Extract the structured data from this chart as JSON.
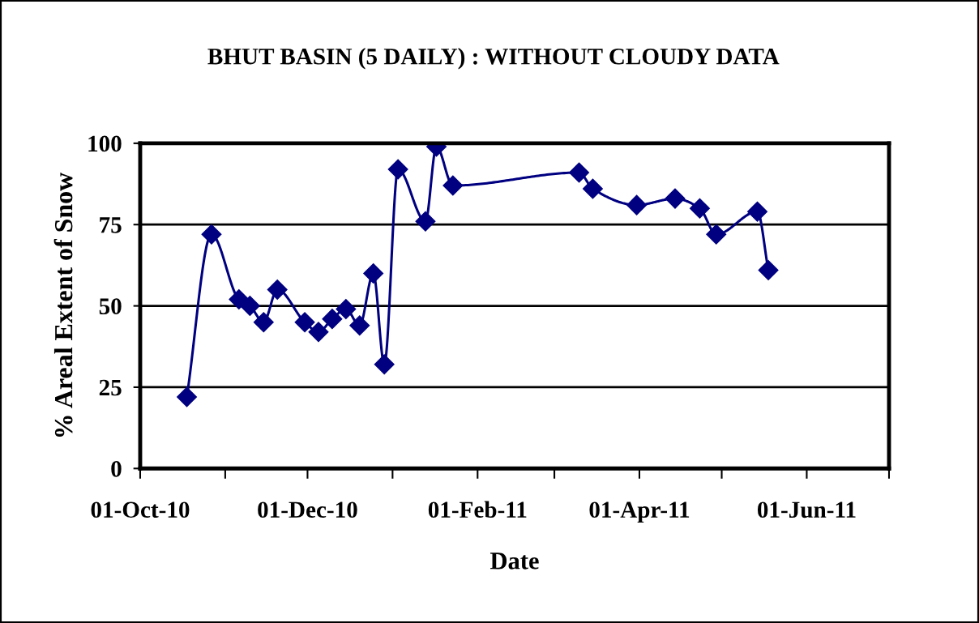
{
  "chart_data": {
    "type": "line",
    "title": "BHUT BASIN (5 DAILY) : WITHOUT CLOUDY DATA",
    "xlabel": "Date",
    "ylabel": "% Areal Extent of Snow",
    "x": [
      "2010-10-18",
      "2010-10-27",
      "2010-11-06",
      "2010-11-10",
      "2010-11-15",
      "2010-11-20",
      "2010-11-30",
      "2010-12-05",
      "2010-12-10",
      "2010-12-15",
      "2010-12-20",
      "2010-12-25",
      "2010-12-29",
      "2011-01-03",
      "2011-01-13",
      "2011-01-17",
      "2011-01-23",
      "2011-03-10",
      "2011-03-15",
      "2011-03-31",
      "2011-04-14",
      "2011-04-23",
      "2011-04-29",
      "2011-05-14",
      "2011-05-18"
    ],
    "series": [
      {
        "color": "#000080",
        "values": [
          22,
          72,
          52,
          50,
          45,
          55,
          45,
          42,
          46,
          49,
          44,
          60,
          32,
          92,
          76,
          99,
          87,
          91,
          86,
          81,
          83,
          80,
          72,
          79,
          61
        ]
      }
    ],
    "xlim": [
      "2010-10-01",
      "2011-07-01"
    ],
    "xticks": [
      {
        "value": "2010-10-01",
        "label": "01-Oct-10"
      },
      {
        "value": "2010-11-01",
        "label": null
      },
      {
        "value": "2010-12-01",
        "label": "01-Dec-10"
      },
      {
        "value": "2011-01-01",
        "label": null
      },
      {
        "value": "2011-02-01",
        "label": "01-Feb-11"
      },
      {
        "value": "2011-03-01",
        "label": null
      },
      {
        "value": "2011-04-01",
        "label": "01-Apr-11"
      },
      {
        "value": "2011-05-01",
        "label": null
      },
      {
        "value": "2011-06-01",
        "label": "01-Jun-11"
      },
      {
        "value": "2011-07-01",
        "label": null
      }
    ],
    "ylim": [
      0,
      100
    ],
    "yticks": [
      0,
      25,
      50,
      75,
      100
    ],
    "grid": "y",
    "marker": "diamond",
    "line_style": "solid"
  }
}
